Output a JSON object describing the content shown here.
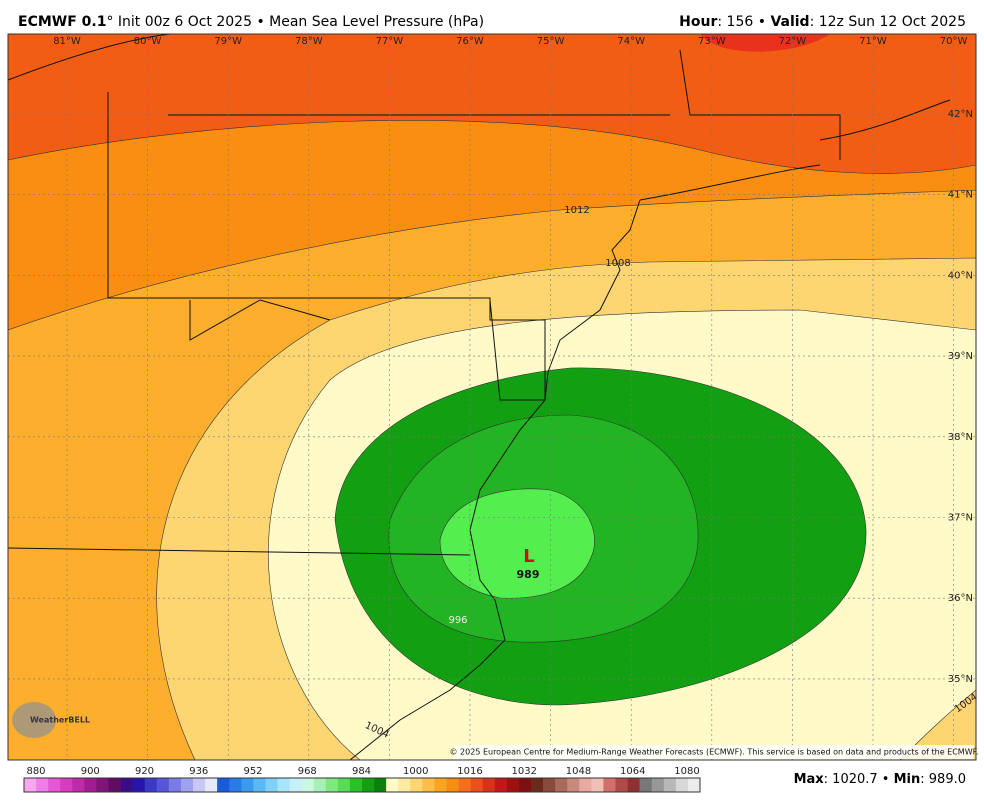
{
  "header": {
    "model": "ECMWF 0.1",
    "title_rest": "° Init 00z 6 Oct 2025 • Mean Sea Level Pressure (hPa)",
    "hour_label": "Hour",
    "hour_value": ": 156 • ",
    "valid_label": "Valid",
    "valid_value": ": 12z Sun 12 Oct 2025"
  },
  "map": {
    "longitudes": [
      "81°W",
      "80°W",
      "79°W",
      "78°W",
      "77°W",
      "76°W",
      "75°W",
      "74°W",
      "73°W",
      "72°W",
      "71°W",
      "70°W"
    ],
    "latitudes": [
      "42°N",
      "41°N",
      "40°N",
      "39°N",
      "38°N",
      "37°N",
      "36°N",
      "35°N"
    ],
    "contour_labels": [
      "1012",
      "1008",
      "1004",
      "1004",
      "996"
    ],
    "low_symbol": "L",
    "low_value": "989",
    "logo": "WeatherBELL",
    "credit": "© 2025 European Centre for Medium-Range Weather Forecasts (ECMWF). This service is based on data and products of the ECMWF."
  },
  "colorbar": {
    "labels": [
      "880",
      "900",
      "920",
      "936",
      "952",
      "968",
      "984",
      "1000",
      "1016",
      "1032",
      "1048",
      "1064",
      "1080"
    ],
    "colors": [
      "#f7a8f0",
      "#f07ee8",
      "#e856d8",
      "#d83ac0",
      "#c02aa8",
      "#a01c90",
      "#801478",
      "#600c60",
      "#3a0c88",
      "#2814a8",
      "#3a3ac8",
      "#5656dc",
      "#7a7ae8",
      "#a0a0f0",
      "#c8c8f8",
      "#e8e8fc",
      "#1a5ad8",
      "#2a7ae8",
      "#3a9af0",
      "#5ab8f4",
      "#80d0f8",
      "#a8e4fa",
      "#c8f0fa",
      "#c8f8e0",
      "#a8f0b8",
      "#80e880",
      "#55dd55",
      "#2ac02a",
      "#12a012",
      "#0c800c",
      "#fffac8",
      "#feeaa0",
      "#fdd672",
      "#fcbe48",
      "#fba424",
      "#f98e13",
      "#f4701a",
      "#e8501c",
      "#d8321a",
      "#c01818",
      "#a01010",
      "#801010",
      "#6a2a1c",
      "#8a4a3a",
      "#a86a5a",
      "#c88a7a",
      "#e8aaa0",
      "#f0c0b8",
      "#d0706a",
      "#b04a48",
      "#903030",
      "#787878",
      "#989898",
      "#b8b8b8",
      "#d8d8d8",
      "#ececec"
    ]
  },
  "footer": {
    "max_label": "Max",
    "max_value": ": 1020.7 • ",
    "min_label": "Min",
    "min_value": ": 989.0"
  }
}
